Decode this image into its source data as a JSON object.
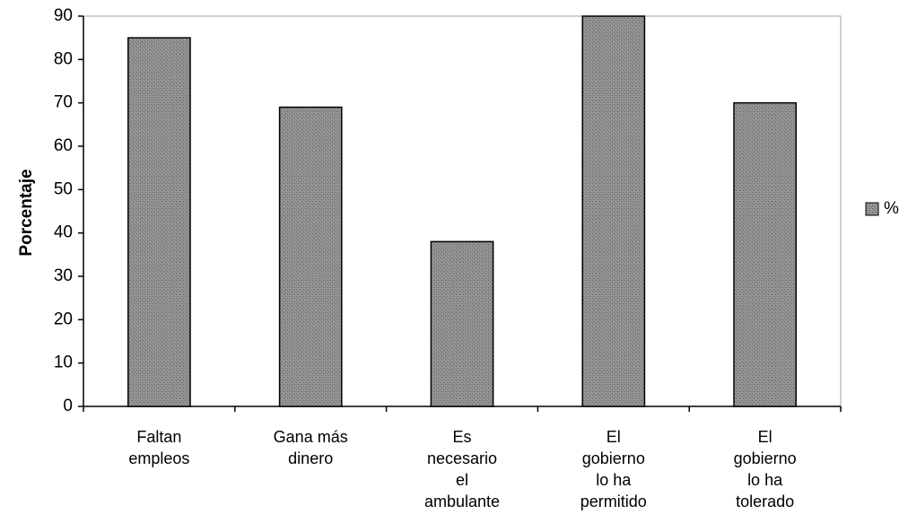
{
  "chart_data": {
    "type": "bar",
    "categories": [
      [
        "Faltan",
        "empleos"
      ],
      [
        "Gana más",
        "dinero"
      ],
      [
        "Es",
        "necesario",
        "el",
        "ambulante"
      ],
      [
        "El",
        "gobierno",
        "lo ha",
        "permitido"
      ],
      [
        "El",
        "gobierno",
        "lo ha",
        "tolerado"
      ]
    ],
    "series": [
      {
        "name": "%",
        "values": [
          85,
          69,
          38,
          90,
          70
        ]
      }
    ],
    "ylabel": "Porcentaje",
    "xlabel": "",
    "ylim": [
      0,
      90
    ],
    "yticks": [
      0,
      10,
      20,
      30,
      40,
      50,
      60,
      70,
      80,
      90
    ],
    "grid": false,
    "legend": {
      "position": "right",
      "entries": [
        "%"
      ]
    },
    "colors": {
      "bar_fill": "#8c8c8c",
      "bar_stroke": "#000000",
      "axis": "#000000"
    }
  }
}
